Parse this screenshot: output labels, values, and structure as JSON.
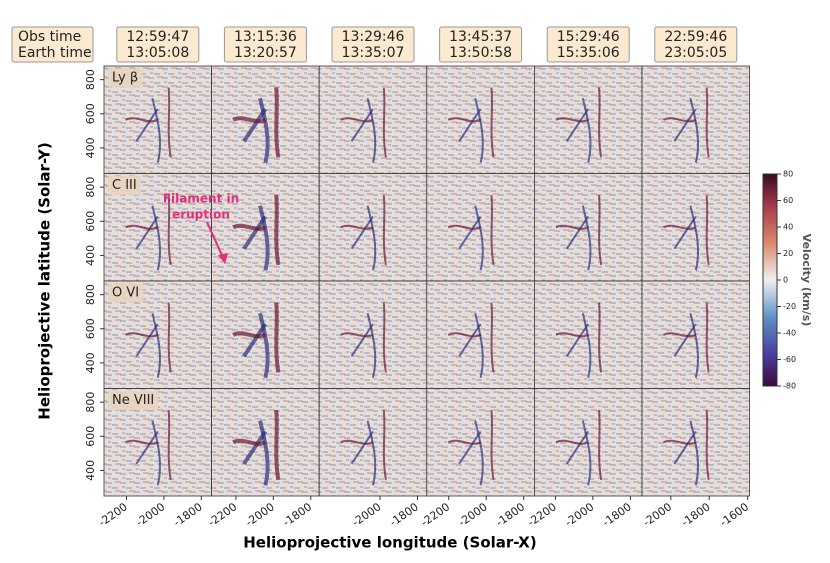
{
  "chart_data": {
    "type": "image-grid",
    "corner_header": [
      "Obs time",
      "Earth time"
    ],
    "columns": [
      {
        "obs_time": "12:59:47",
        "earth_time": "13:05:08",
        "xlim": [
          -2320,
          -1745
        ],
        "xticks": [
          -2200,
          -2000,
          -1800
        ]
      },
      {
        "obs_time": "13:15:36",
        "earth_time": "13:20:57",
        "xlim": [
          -2330,
          -1755
        ],
        "xticks": [
          -2200,
          -2000,
          -1800
        ]
      },
      {
        "obs_time": "13:29:46",
        "earth_time": "13:35:07",
        "xlim": [
          -2325,
          -1750
        ],
        "xticks": [
          -2000,
          -1800
        ]
      },
      {
        "obs_time": "13:45:37",
        "earth_time": "13:50:58",
        "xlim": [
          -2317,
          -1743
        ],
        "xticks": [
          -2200,
          -2000,
          -1800
        ]
      },
      {
        "obs_time": "15:29:46",
        "earth_time": "15:35:06",
        "xlim": [
          -2312,
          -1738
        ],
        "xticks": [
          -2200,
          -2000,
          -1800
        ]
      },
      {
        "obs_time": "22:59:46",
        "earth_time": "23:05:05",
        "xlim": [
          -2150,
          -1590
        ],
        "xticks": [
          -2000,
          -1800,
          -1600
        ]
      }
    ],
    "rows": [
      "Ly β",
      "C III",
      "O VI",
      "Ne VIII"
    ],
    "ylim": [
      250,
      880
    ],
    "yticks": [
      400,
      600,
      800
    ],
    "xlabel": "Helioprojective longitude (Solar-X)",
    "ylabel": "Helioprojective latitude (Solar-Y)",
    "annotation": [
      "Filament in",
      "eruption"
    ],
    "colorbar": {
      "label": "Velocity (km/s)",
      "lim": [
        -80,
        80
      ],
      "ticks": [
        -80,
        -60,
        -40,
        -20,
        0,
        20,
        40,
        60,
        80
      ]
    }
  }
}
